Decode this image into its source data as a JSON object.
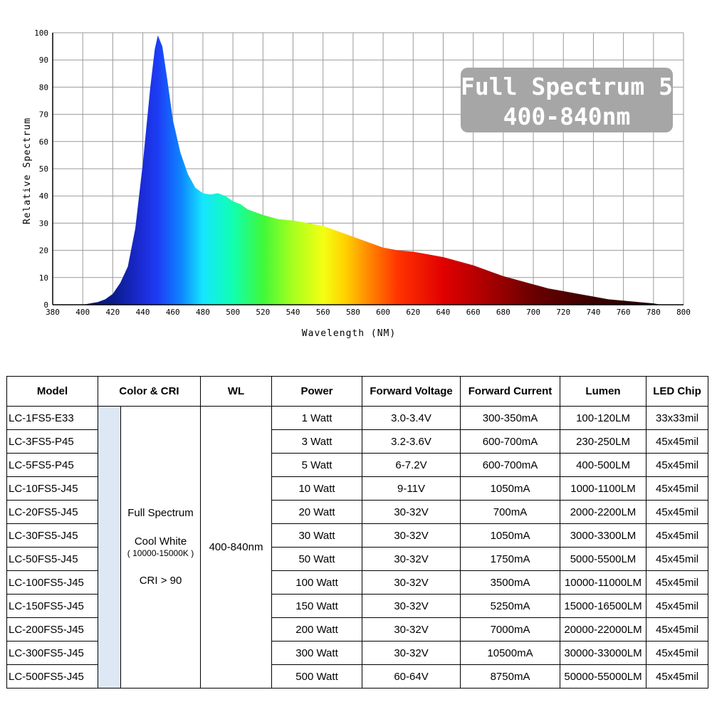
{
  "chart_data": {
    "type": "area",
    "xlabel": "Wavelength (NM)",
    "ylabel": "Relative Spectrum",
    "xlim": [
      380,
      800
    ],
    "ylim": [
      0,
      100
    ],
    "x_ticks": [
      380,
      400,
      420,
      440,
      460,
      480,
      500,
      520,
      540,
      560,
      580,
      600,
      620,
      640,
      660,
      680,
      700,
      720,
      740,
      760,
      780,
      800
    ],
    "y_ticks": [
      0,
      10,
      20,
      30,
      40,
      50,
      60,
      70,
      80,
      90,
      100
    ],
    "grid": true,
    "annotation": [
      "Full Spectrum 5",
      "400-840nm"
    ],
    "x": [
      400,
      405,
      410,
      415,
      420,
      425,
      430,
      435,
      440,
      445,
      448,
      450,
      453,
      456,
      460,
      465,
      470,
      475,
      480,
      485,
      490,
      495,
      500,
      505,
      510,
      515,
      520,
      530,
      540,
      550,
      560,
      570,
      580,
      590,
      600,
      610,
      620,
      630,
      640,
      650,
      660,
      670,
      680,
      690,
      700,
      710,
      720,
      730,
      740,
      750,
      760,
      770,
      780,
      785
    ],
    "y": [
      0,
      0.5,
      1,
      2,
      4,
      8,
      14,
      28,
      52,
      80,
      94,
      99,
      95,
      84,
      68,
      56,
      48,
      43,
      41,
      40.5,
      41,
      40,
      38,
      37,
      35,
      34,
      33,
      31.5,
      31,
      30,
      29,
      27,
      25,
      23,
      21,
      20,
      19.5,
      18.5,
      17.5,
      16,
      14.5,
      12.5,
      10.5,
      9,
      7.5,
      6,
      5,
      4,
      3,
      2,
      1.5,
      1,
      0.5,
      0
    ]
  },
  "table": {
    "headers": [
      "Model",
      "Color & CRI",
      "WL",
      "Power",
      "Forward Voltage",
      "Forward Current",
      "Lumen",
      "LED Chip"
    ],
    "color_cri": {
      "line1": "Full Spectrum",
      "line2": "Cool White",
      "line3": "( 10000-15000K )",
      "line4": "CRI > 90"
    },
    "wl": "400-840nm",
    "rows": [
      {
        "model": "LC-1FS5-E33",
        "power": "1 Watt",
        "voltage": "3.0-3.4V",
        "current": "300-350mA",
        "lumen": "100-120LM",
        "chip": "33x33mil"
      },
      {
        "model": "LC-3FS5-P45",
        "power": "3 Watt",
        "voltage": "3.2-3.6V",
        "current": "600-700mA",
        "lumen": "230-250LM",
        "chip": "45x45mil"
      },
      {
        "model": "LC-5FS5-P45",
        "power": "5 Watt",
        "voltage": "6-7.2V",
        "current": "600-700mA",
        "lumen": "400-500LM",
        "chip": "45x45mil"
      },
      {
        "model": "LC-10FS5-J45",
        "power": "10 Watt",
        "voltage": "9-11V",
        "current": "1050mA",
        "lumen": "1000-1100LM",
        "chip": "45x45mil"
      },
      {
        "model": "LC-20FS5-J45",
        "power": "20 Watt",
        "voltage": "30-32V",
        "current": "700mA",
        "lumen": "2000-2200LM",
        "chip": "45x45mil"
      },
      {
        "model": "LC-30FS5-J45",
        "power": "30 Watt",
        "voltage": "30-32V",
        "current": "1050mA",
        "lumen": "3000-3300LM",
        "chip": "45x45mil"
      },
      {
        "model": "LC-50FS5-J45",
        "power": "50 Watt",
        "voltage": "30-32V",
        "current": "1750mA",
        "lumen": "5000-5500LM",
        "chip": "45x45mil"
      },
      {
        "model": "LC-100FS5-J45",
        "power": "100 Watt",
        "voltage": "30-32V",
        "current": "3500mA",
        "lumen": "10000-11000LM",
        "chip": "45x45mil"
      },
      {
        "model": "LC-150FS5-J45",
        "power": "150 Watt",
        "voltage": "30-32V",
        "current": "5250mA",
        "lumen": "15000-16500LM",
        "chip": "45x45mil"
      },
      {
        "model": "LC-200FS5-J45",
        "power": "200 Watt",
        "voltage": "30-32V",
        "current": "7000mA",
        "lumen": "20000-22000LM",
        "chip": "45x45mil"
      },
      {
        "model": "LC-300FS5-J45",
        "power": "300 Watt",
        "voltage": "30-32V",
        "current": "10500mA",
        "lumen": "30000-33000LM",
        "chip": "45x45mil"
      },
      {
        "model": "LC-500FS5-J45",
        "power": "500 Watt",
        "voltage": "60-64V",
        "current": "8750mA",
        "lumen": "50000-55000LM",
        "chip": "45x45mil"
      }
    ]
  }
}
